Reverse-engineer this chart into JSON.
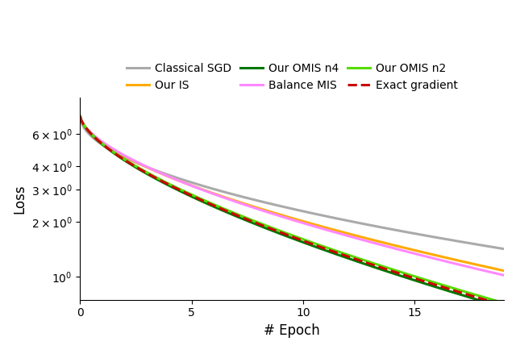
{
  "xlabel": "# Epoch",
  "ylabel": "Loss",
  "xlim": [
    0,
    19
  ],
  "ylim_log": [
    0.75,
    9.5
  ],
  "x_ticks": [
    0,
    5,
    10,
    15
  ],
  "curves": {
    "classical_sgd": {
      "label": "Classical SGD",
      "color": "#aaaaaa",
      "linestyle": "-",
      "linewidth": 2.2,
      "start": 7.5,
      "end": 1.42,
      "power": 0.52
    },
    "our_is": {
      "label": "Our IS",
      "color": "#ffaa00",
      "linestyle": "-",
      "linewidth": 2.2,
      "start": 7.5,
      "end": 1.08,
      "power": 0.6
    },
    "our_omis_n4": {
      "label": "Our OMIS n4",
      "color": "#007700",
      "linestyle": "-",
      "linewidth": 2.2,
      "start": 7.5,
      "end": 0.68,
      "power": 0.65
    },
    "balance_mis": {
      "label": "Balance MIS",
      "color": "#ff88ff",
      "linestyle": "-",
      "linewidth": 2.2,
      "start": 7.5,
      "end": 1.02,
      "power": 0.62
    },
    "our_omis_n2": {
      "label": "Our OMIS n2",
      "color": "#55dd00",
      "linestyle": "-",
      "linewidth": 2.2,
      "start": 7.5,
      "end": 0.72,
      "power": 0.65
    },
    "exact_gradient": {
      "label": "Exact gradient",
      "color": "#cc0000",
      "linestyle": "--",
      "linewidth": 2.2,
      "start": 7.5,
      "end": 0.7,
      "power": 0.65
    }
  },
  "legend_order": [
    "classical_sgd",
    "our_is",
    "our_omis_n4",
    "balance_mis",
    "our_omis_n2",
    "exact_gradient"
  ],
  "yticks": [
    1.0,
    2.0,
    3.0,
    4.0,
    6.0
  ],
  "ytick_labels": [
    "$10^{0}$",
    "$2\\times10^{0}$",
    "$3\\times10^{0}$",
    "$4\\times10^{0}$",
    "$6\\times10^{0}$"
  ]
}
